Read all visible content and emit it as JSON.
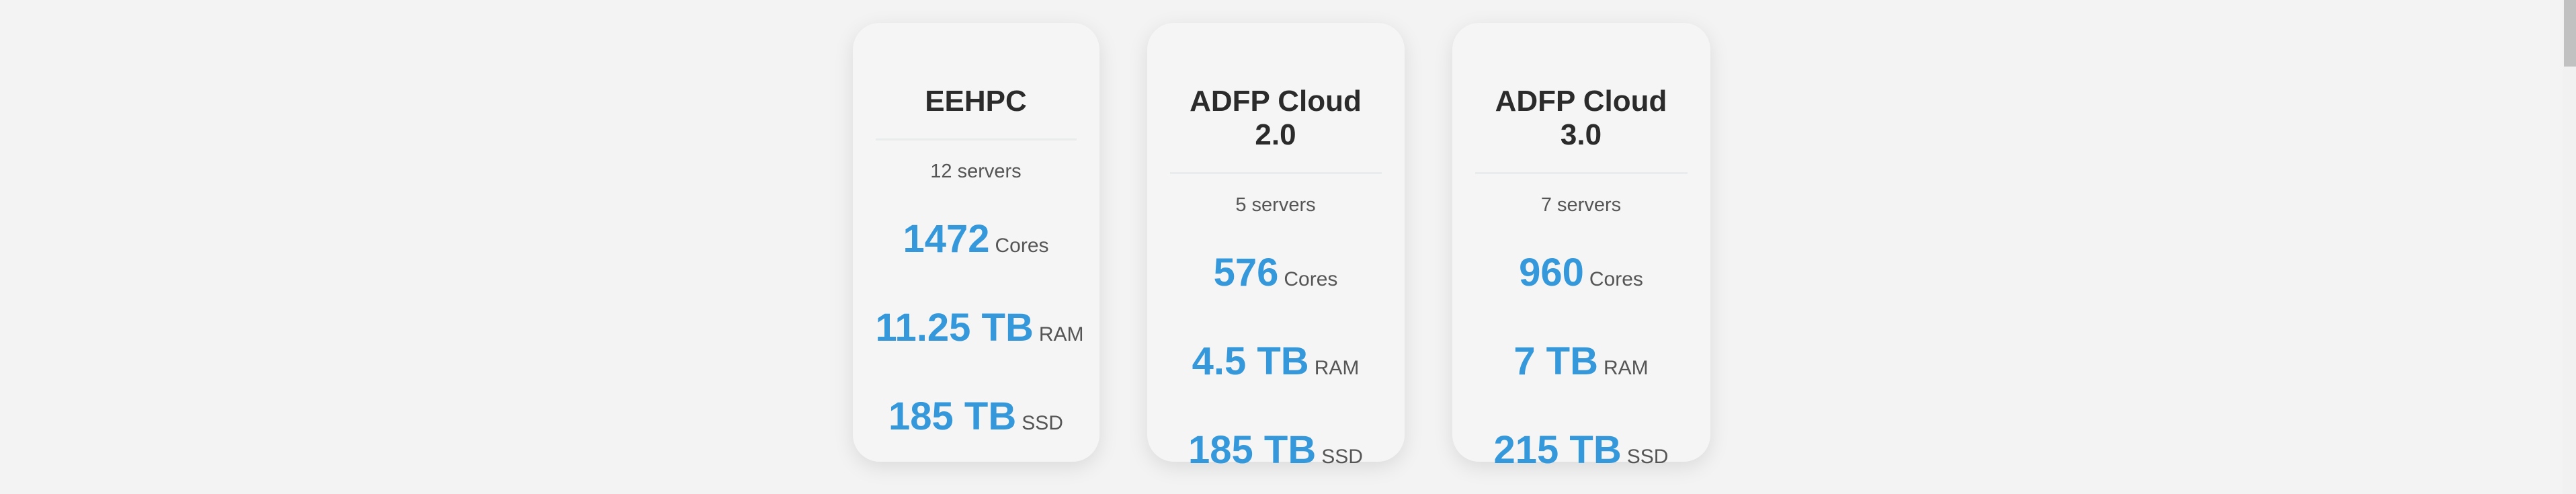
{
  "cards": [
    {
      "title": "EEHPC",
      "servers": "12 servers",
      "cores_value": "1472",
      "cores_unit": "Cores",
      "ram_value": "11.25 TB",
      "ram_unit": "RAM",
      "ssd_value": "185 TB",
      "ssd_unit": "SSD"
    },
    {
      "title": "ADFP Cloud 2.0",
      "servers": "5 servers",
      "cores_value": "576",
      "cores_unit": "Cores",
      "ram_value": "4.5 TB",
      "ram_unit": "RAM",
      "ssd_value": "185 TB",
      "ssd_unit": "SSD"
    },
    {
      "title": "ADFP Cloud 3.0",
      "servers": "7 servers",
      "cores_value": "960",
      "cores_unit": "Cores",
      "ram_value": "7 TB",
      "ram_unit": "RAM",
      "ssd_value": "215 TB",
      "ssd_unit": "SSD"
    }
  ],
  "colors": {
    "accent": "#3498db",
    "title": "#2b2b2b",
    "muted": "#555555",
    "card_bg": "#f5f5f5",
    "page_bg": "#f3f3f3"
  }
}
